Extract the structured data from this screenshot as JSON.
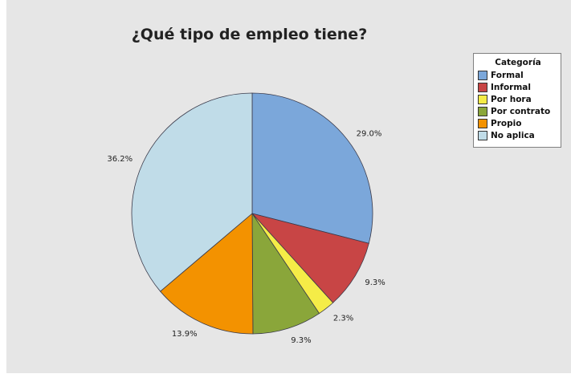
{
  "chart_data": {
    "type": "pie",
    "title": "¿Qué tipo de empleo tiene?",
    "legend_title": "Categoría",
    "legend_position": "top-right",
    "slices": [
      {
        "label": "Formal",
        "value": 29.0,
        "value_label": "29.0%",
        "color": "#7ba7da"
      },
      {
        "label": "Informal",
        "value": 9.3,
        "value_label": "9.3%",
        "color": "#c84545"
      },
      {
        "label": "Por hora",
        "value": 2.3,
        "value_label": "2.3%",
        "color": "#f5ec47"
      },
      {
        "label": "Por contrato",
        "value": 9.3,
        "value_label": "9.3%",
        "color": "#8aa63a"
      },
      {
        "label": "Propio",
        "value": 13.9,
        "value_label": "13.9%",
        "color": "#f39200"
      },
      {
        "label": "No aplica",
        "value": 36.2,
        "value_label": "36.2%",
        "color": "#c0dce8"
      }
    ]
  }
}
